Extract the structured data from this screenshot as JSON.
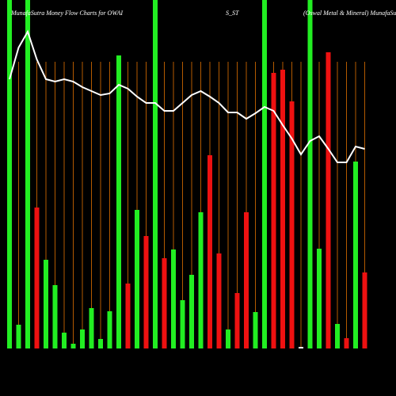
{
  "chart_data": {
    "type": "bar",
    "title": "MunafaSutra  Money Flow  Charts for OWAI",
    "subtitle": "S_ST",
    "annotation": "(Oswal Metal & Mineral) MunafaSutra.com",
    "ylim": [
      0,
      440
    ],
    "values": [
      440,
      30,
      440,
      178,
      112,
      80,
      20,
      6,
      24,
      51,
      12,
      47,
      370,
      82,
      175,
      142,
      440,
      114,
      125,
      61,
      93,
      172,
      244,
      120,
      24,
      70,
      172,
      46,
      440,
      348,
      352,
      312,
      2,
      440,
      126,
      374,
      31,
      13,
      236,
      96
    ],
    "colors": [
      "#22ee22",
      "#22ee22",
      "#22ee22",
      "#ee1111",
      "#22ee22",
      "#22ee22",
      "#22ee22",
      "#22ee22",
      "#22ee22",
      "#22ee22",
      "#22ee22",
      "#22ee22",
      "#22ee22",
      "#ee1111",
      "#22ee22",
      "#ee1111",
      "#22ee22",
      "#ee1111",
      "#22ee22",
      "#22ee22",
      "#22ee22",
      "#22ee22",
      "#ee1111",
      "#ee1111",
      "#22ee22",
      "#ee1111",
      "#ee1111",
      "#22ee22",
      "#22ee22",
      "#ee1111",
      "#ee1111",
      "#ee1111",
      "#ffffff",
      "#22ee22",
      "#22ee22",
      "#ee1111",
      "#22ee22",
      "#ee1111",
      "#22ee22",
      "#ee1111"
    ],
    "line": {
      "color": "#ffffff",
      "values": [
        340,
        380,
        400,
        365,
        340,
        337,
        340,
        337,
        330,
        325,
        320,
        322,
        333,
        328,
        318,
        310,
        310,
        300,
        300,
        310,
        320,
        325,
        318,
        310,
        298,
        298,
        290,
        297,
        305,
        300,
        282,
        265,
        245,
        262,
        268,
        252,
        235,
        235,
        255,
        252
      ]
    },
    "guide_color": "#b35a00"
  }
}
